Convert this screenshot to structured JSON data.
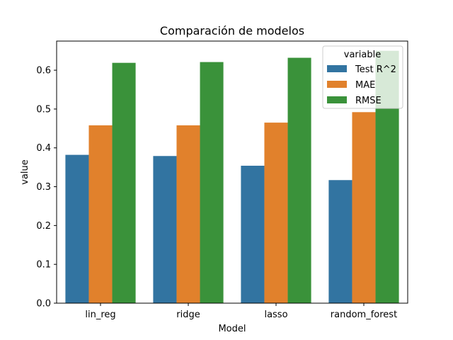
{
  "chart_data": {
    "type": "bar",
    "title": "Comparación de modelos",
    "xlabel": "Model",
    "ylabel": "value",
    "categories": [
      "lin_reg",
      "ridge",
      "lasso",
      "random_forest"
    ],
    "series": [
      {
        "name": "Test R^2",
        "color": "#3274a1",
        "values": [
          0.382,
          0.379,
          0.354,
          0.317
        ]
      },
      {
        "name": "MAE",
        "color": "#e1812c",
        "values": [
          0.458,
          0.458,
          0.465,
          0.492
        ]
      },
      {
        "name": "RMSE",
        "color": "#3a923a",
        "values": [
          0.619,
          0.621,
          0.632,
          0.65
        ]
      }
    ],
    "ylim": [
      0,
      0.675
    ],
    "yticks": [
      "0.0",
      "0.1",
      "0.2",
      "0.3",
      "0.4",
      "0.5",
      "0.6"
    ],
    "legend": {
      "title": "variable",
      "placement": "top-right"
    },
    "grid": false
  }
}
